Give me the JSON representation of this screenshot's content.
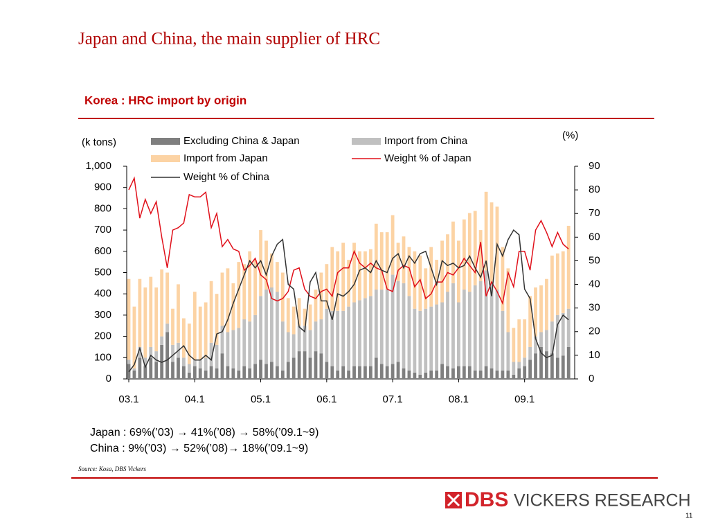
{
  "page_title": "Japan and China, the main supplier of HRC",
  "notes": [
    "Japan : 69%(’03) → 41%(’08) → 58%(’09.1~9)",
    "China : 9%(’03) → 52%(’08)→ 18%(’09.1~9)"
  ],
  "source": "Source: Kosa, DBS Vickers",
  "logo": {
    "brand": "DBS",
    "tagline": "VICKERS RESEARCH"
  },
  "page_number": "11",
  "chart_data": {
    "type": "bar",
    "title": "Korea : HRC import by origin",
    "y_label": "(k tons)",
    "y2_label": "(%)",
    "stacked": true,
    "categories": [
      "03.1",
      null,
      null,
      null,
      null,
      null,
      null,
      null,
      null,
      null,
      null,
      null,
      "04.1",
      null,
      null,
      null,
      null,
      null,
      null,
      null,
      null,
      null,
      null,
      null,
      "05.1",
      null,
      null,
      null,
      null,
      null,
      null,
      null,
      null,
      null,
      null,
      null,
      "06.1",
      null,
      null,
      null,
      null,
      null,
      null,
      null,
      null,
      null,
      null,
      null,
      "07.1",
      null,
      null,
      null,
      null,
      null,
      null,
      null,
      null,
      null,
      null,
      null,
      "08.1",
      null,
      null,
      null,
      null,
      null,
      null,
      null,
      null,
      null,
      null,
      null,
      "09.1",
      null,
      null,
      null,
      null,
      null,
      null,
      null,
      null
    ],
    "ylim": [
      0,
      1000
    ],
    "yticks": [
      0,
      100,
      200,
      300,
      400,
      500,
      600,
      700,
      800,
      900,
      {
        "value": 1000,
        "label": "1,000"
      }
    ],
    "y2lim": [
      0,
      90
    ],
    "y2ticks": [
      0,
      10,
      20,
      30,
      40,
      50,
      60,
      70,
      80,
      90
    ],
    "series": [
      {
        "name": "Excluding China & Japan",
        "type": "bar",
        "color": "#7f7f7f",
        "values": [
          70,
          40,
          100,
          60,
          100,
          80,
          160,
          220,
          80,
          100,
          60,
          30,
          60,
          50,
          40,
          60,
          50,
          120,
          60,
          50,
          40,
          60,
          50,
          70,
          90,
          70,
          80,
          60,
          40,
          80,
          100,
          130,
          130,
          100,
          130,
          120,
          80,
          60,
          40,
          60,
          40,
          60,
          60,
          60,
          60,
          100,
          70,
          60,
          70,
          80,
          50,
          40,
          30,
          20,
          30,
          40,
          40,
          70,
          60,
          50,
          60,
          60,
          60,
          40,
          40,
          60,
          50,
          40,
          40,
          40,
          20,
          50,
          60,
          90,
          120,
          150,
          130,
          120,
          100,
          110,
          150
        ]
      },
      {
        "name": "Import from China",
        "type": "bar",
        "color": "#c0c0c0",
        "values": [
          20,
          10,
          50,
          40,
          50,
          50,
          40,
          40,
          80,
          70,
          40,
          40,
          30,
          40,
          60,
          110,
          110,
          130,
          160,
          180,
          200,
          220,
          220,
          230,
          300,
          350,
          350,
          350,
          230,
          140,
          110,
          120,
          120,
          130,
          140,
          160,
          250,
          260,
          280,
          260,
          300,
          300,
          310,
          320,
          330,
          320,
          350,
          360,
          420,
          380,
          400,
          350,
          300,
          300,
          300,
          300,
          310,
          290,
          350,
          400,
          300,
          360,
          350,
          400,
          420,
          450,
          400,
          380,
          280,
          180,
          60,
          30,
          40,
          60,
          80,
          70,
          100,
          150,
          200,
          200,
          180
        ]
      },
      {
        "name": "Import from Japan",
        "type": "bar",
        "color": "#fcd3a4",
        "values": [
          380,
          290,
          320,
          330,
          330,
          300,
          315,
          240,
          170,
          275,
          185,
          190,
          320,
          250,
          260,
          290,
          240,
          250,
          300,
          220,
          310,
          260,
          330,
          260,
          310,
          230,
          160,
          140,
          230,
          160,
          130,
          130,
          80,
          120,
          150,
          220,
          210,
          300,
          280,
          320,
          220,
          280,
          230,
          220,
          220,
          310,
          270,
          270,
          280,
          180,
          220,
          230,
          270,
          260,
          190,
          280,
          210,
          290,
          270,
          290,
          290,
          330,
          370,
          350,
          240,
          370,
          380,
          390,
          300,
          300,
          160,
          200,
          180,
          240,
          230,
          220,
          240,
          310,
          290,
          290,
          390
        ]
      },
      {
        "name": "Weight % of Japan",
        "type": "line",
        "axis": "y2",
        "color": "#e0101a",
        "values": [
          80,
          85,
          68,
          76,
          70,
          75,
          60,
          47,
          63,
          64,
          66,
          78,
          77,
          77,
          79,
          64,
          70,
          56,
          59,
          55,
          54,
          46,
          48,
          51,
          44,
          42,
          34,
          33,
          34,
          37,
          46,
          47,
          38,
          35,
          34,
          37,
          38,
          35,
          45,
          47,
          47,
          54,
          49,
          47,
          49,
          47,
          46,
          38,
          37,
          46,
          48,
          47,
          39,
          42,
          34,
          36,
          41,
          41,
          45,
          44,
          47,
          51,
          48,
          45,
          58,
          35,
          41,
          37,
          32,
          45,
          39,
          54,
          54,
          46,
          63,
          67,
          62,
          56,
          62,
          57,
          55
        ]
      },
      {
        "name": "Weight % of China",
        "type": "line",
        "axis": "y2",
        "color": "#333333",
        "values": [
          3,
          6,
          13,
          5,
          10,
          8,
          7,
          8,
          10,
          12,
          14,
          10,
          8,
          8,
          10,
          8,
          19,
          20,
          25,
          32,
          38,
          44,
          50,
          47,
          50,
          44,
          52,
          57,
          59,
          40,
          38,
          22,
          20,
          41,
          45,
          33,
          33,
          25,
          36,
          35,
          37,
          40,
          46,
          47,
          45,
          50,
          46,
          45,
          51,
          53,
          47,
          52,
          49,
          53,
          54,
          47,
          40,
          50,
          48,
          49,
          47,
          48,
          52,
          47,
          43,
          50,
          35,
          57,
          52,
          59,
          63,
          61,
          38,
          34,
          17,
          11,
          9,
          10,
          23,
          27,
          25
        ]
      }
    ]
  }
}
